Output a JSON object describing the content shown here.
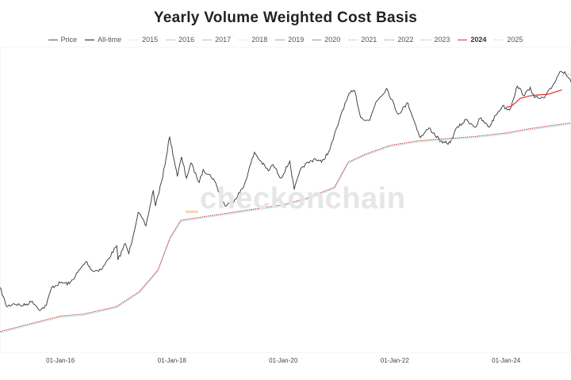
{
  "chart_data": {
    "type": "line",
    "title": "Yearly Volume Weighted Cost Basis",
    "y_scale": "log",
    "y_axis_labels": "hidden",
    "xlim": [
      "2014-12-01",
      "2025-03-01"
    ],
    "grid": false,
    "x_tick_labels": [
      {
        "date": "2016-01-01",
        "label": "01-Jan-16"
      },
      {
        "date": "2018-01-01",
        "label": "01-Jan-18"
      },
      {
        "date": "2020-01-01",
        "label": "01-Jan-20"
      },
      {
        "date": "2022-01-01",
        "label": "01-Jan-22"
      },
      {
        "date": "2024-01-01",
        "label": "01-Jan-24"
      }
    ],
    "legend": {
      "placement": "top-center",
      "entries": [
        {
          "name": "Price",
          "color": "#555555",
          "style": "solid",
          "bold": false
        },
        {
          "name": "All-time",
          "color": "#222222",
          "style": "solid",
          "bold": false
        },
        {
          "name": "2015",
          "color": "#d9d9d9",
          "style": "dotted",
          "bold": false
        },
        {
          "name": "2016",
          "color": "#c8c8c8",
          "style": "solid",
          "bold": false
        },
        {
          "name": "2017",
          "color": "#bdbdbd",
          "style": "solid",
          "bold": false
        },
        {
          "name": "2018",
          "color": "#d9d9d9",
          "style": "dotted",
          "bold": false
        },
        {
          "name": "2019",
          "color": "#aaaaaa",
          "style": "solid",
          "bold": false
        },
        {
          "name": "2020",
          "color": "#999999",
          "style": "solid",
          "bold": false
        },
        {
          "name": "2021",
          "color": "#c9a6a6",
          "style": "dotted",
          "bold": false
        },
        {
          "name": "2022",
          "color": "#888888",
          "style": "dotted",
          "bold": false
        },
        {
          "name": "2023",
          "color": "#e08a8a",
          "style": "dotted",
          "bold": false
        },
        {
          "name": "2024",
          "color": "#e03030",
          "style": "solid",
          "bold": true
        },
        {
          "name": "2025",
          "color": "#cccccc",
          "style": "dotted",
          "bold": false
        }
      ]
    },
    "series": [
      {
        "name": "Price",
        "color": "#333333",
        "points": [
          [
            "2014-12-01",
            380
          ],
          [
            "2015-01-14",
            230
          ],
          [
            "2015-03-01",
            250
          ],
          [
            "2015-05-01",
            236
          ],
          [
            "2015-07-01",
            265
          ],
          [
            "2015-08-24",
            210
          ],
          [
            "2015-10-01",
            240
          ],
          [
            "2015-11-04",
            380
          ],
          [
            "2016-01-01",
            430
          ],
          [
            "2016-03-01",
            420
          ],
          [
            "2016-06-17",
            750
          ],
          [
            "2016-08-01",
            580
          ],
          [
            "2016-10-01",
            620
          ],
          [
            "2017-01-04",
            1130
          ],
          [
            "2017-01-12",
            780
          ],
          [
            "2017-03-01",
            1200
          ],
          [
            "2017-03-25",
            920
          ],
          [
            "2017-05-25",
            2700
          ],
          [
            "2017-07-15",
            1900
          ],
          [
            "2017-09-01",
            4800
          ],
          [
            "2017-09-15",
            3200
          ],
          [
            "2017-11-01",
            6700
          ],
          [
            "2017-12-17",
            19500
          ],
          [
            "2018-02-06",
            6900
          ],
          [
            "2018-03-05",
            11500
          ],
          [
            "2018-04-06",
            6600
          ],
          [
            "2018-05-05",
            9800
          ],
          [
            "2018-06-29",
            5900
          ],
          [
            "2018-07-25",
            8300
          ],
          [
            "2018-10-01",
            6500
          ],
          [
            "2018-12-15",
            3200
          ],
          [
            "2019-02-01",
            3500
          ],
          [
            "2019-04-15",
            5200
          ],
          [
            "2019-06-26",
            13000
          ],
          [
            "2019-08-01",
            10500
          ],
          [
            "2019-09-25",
            8000
          ],
          [
            "2019-10-26",
            9400
          ],
          [
            "2019-12-17",
            6600
          ],
          [
            "2020-02-13",
            10300
          ],
          [
            "2020-03-12",
            4900
          ],
          [
            "2020-05-01",
            8800
          ],
          [
            "2020-07-27",
            11000
          ],
          [
            "2020-09-08",
            10000
          ],
          [
            "2020-11-01",
            13800
          ],
          [
            "2020-12-31",
            29000
          ],
          [
            "2021-01-15",
            36000
          ],
          [
            "2021-03-13",
            61000
          ],
          [
            "2021-04-14",
            64000
          ],
          [
            "2021-05-23",
            32000
          ],
          [
            "2021-07-20",
            29800
          ],
          [
            "2021-09-01",
            49000
          ],
          [
            "2021-11-10",
            68500
          ],
          [
            "2022-01-22",
            35000
          ],
          [
            "2022-03-28",
            47000
          ],
          [
            "2022-05-12",
            28000
          ],
          [
            "2022-06-18",
            19000
          ],
          [
            "2022-08-13",
            24500
          ],
          [
            "2022-11-09",
            16500
          ],
          [
            "2022-12-31",
            16600
          ],
          [
            "2023-01-31",
            23000
          ],
          [
            "2023-04-14",
            30500
          ],
          [
            "2023-06-15",
            25000
          ],
          [
            "2023-07-13",
            31500
          ],
          [
            "2023-09-11",
            25000
          ],
          [
            "2023-10-24",
            34000
          ],
          [
            "2023-12-08",
            43500
          ],
          [
            "2024-01-23",
            39000
          ],
          [
            "2024-03-14",
            73000
          ],
          [
            "2024-05-01",
            57000
          ],
          [
            "2024-06-07",
            71000
          ],
          [
            "2024-07-05",
            54000
          ],
          [
            "2024-08-05",
            53000
          ],
          [
            "2024-09-06",
            53500
          ],
          [
            "2024-10-29",
            72000
          ],
          [
            "2024-12-17",
            106000
          ],
          [
            "2025-01-20",
            106000
          ],
          [
            "2025-02-25",
            86000
          ],
          [
            "2025-03-01",
            84000
          ]
        ]
      },
      {
        "name": "All-time",
        "color": "#cc3333",
        "points": [
          [
            "2014-12-01",
            120
          ],
          [
            "2015-06-01",
            145
          ],
          [
            "2016-01-01",
            180
          ],
          [
            "2016-06-01",
            190
          ],
          [
            "2017-01-01",
            230
          ],
          [
            "2017-06-01",
            340
          ],
          [
            "2017-10-01",
            600
          ],
          [
            "2017-12-20",
            1400
          ],
          [
            "2018-03-01",
            2200
          ],
          [
            "2018-12-01",
            2600
          ],
          [
            "2019-06-01",
            2900
          ],
          [
            "2020-01-01",
            3300
          ],
          [
            "2020-06-01",
            3900
          ],
          [
            "2020-12-01",
            5200
          ],
          [
            "2021-03-01",
            10000
          ],
          [
            "2021-07-01",
            12500
          ],
          [
            "2021-12-01",
            15500
          ],
          [
            "2022-06-01",
            17500
          ],
          [
            "2022-12-01",
            18500
          ],
          [
            "2023-06-01",
            19500
          ],
          [
            "2024-01-01",
            21500
          ],
          [
            "2024-06-01",
            24000
          ],
          [
            "2025-03-01",
            28000
          ]
        ]
      },
      {
        "name": "2024",
        "color": "#e03030",
        "points": [
          [
            "2024-01-01",
            42000
          ],
          [
            "2024-02-01",
            43000
          ],
          [
            "2024-03-01",
            47000
          ],
          [
            "2024-04-01",
            53000
          ],
          [
            "2024-06-01",
            56500
          ],
          [
            "2024-08-01",
            58000
          ],
          [
            "2024-10-01",
            59000
          ],
          [
            "2024-12-31",
            66000
          ]
        ]
      },
      {
        "name": "2025",
        "color": "#999999",
        "points": [
          [
            "2025-01-01",
            96000
          ],
          [
            "2025-02-01",
            99000
          ],
          [
            "2025-03-01",
            98500
          ]
        ]
      }
    ]
  },
  "watermark": {
    "text": "checkonchain",
    "accent_color": "#f9d2b8"
  }
}
